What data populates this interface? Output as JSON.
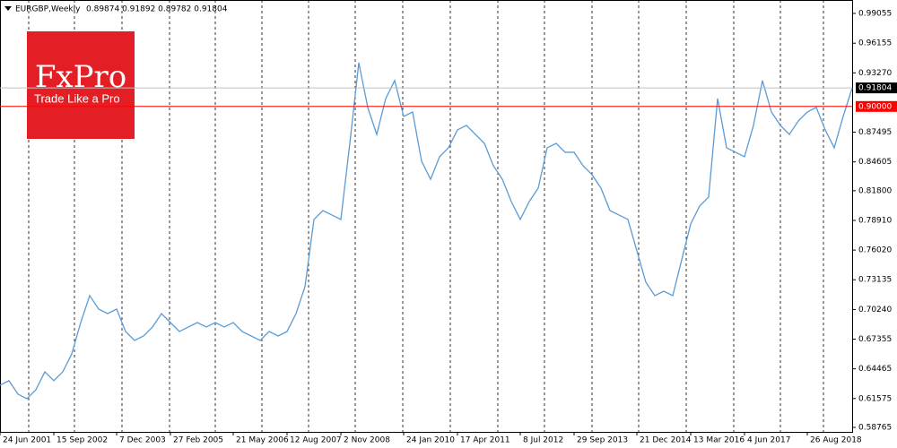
{
  "chart_data": {
    "type": "line",
    "title": "EURGBP,Weekly",
    "subtitle": "0.89874 0.91892 0.89782 0.91804",
    "brand": "FxPro",
    "slogan": "Trade Like a Pro",
    "color": "#5b9bd5",
    "categories": [
      "24 Jun 2001",
      null,
      null,
      null,
      null,
      null,
      "15 Sep 2002",
      null,
      null,
      null,
      null,
      null,
      null,
      "7 Dec 2003",
      null,
      null,
      null,
      null,
      null,
      "27 Feb 2005",
      null,
      null,
      null,
      null,
      null,
      null,
      "21 May 2006",
      null,
      null,
      null,
      null,
      null,
      "12 Aug 2007",
      null,
      null,
      null,
      null,
      null,
      "2 Nov 2008",
      null,
      null,
      null,
      null,
      null,
      null,
      "24 Jan 2010",
      null,
      null,
      null,
      null,
      null,
      "17 Apr 2011",
      null,
      null,
      null,
      null,
      null,
      null,
      "8 Jul 2012",
      null,
      null,
      null,
      null,
      null,
      "29 Sep 2013",
      null,
      null,
      null,
      null,
      null,
      null,
      "21 Dec 2014",
      null,
      null,
      null,
      null,
      null,
      "13 Mar 2016",
      null,
      null,
      null,
      null,
      null,
      "4 Jun 2017",
      null,
      null,
      null,
      null,
      null,
      null,
      "26 Aug 2018",
      null,
      null,
      null,
      null,
      null
    ],
    "values": [
      0.6287,
      0.6331,
      0.62,
      0.6156,
      0.6243,
      0.6418,
      0.6331,
      0.6418,
      0.6592,
      0.6897,
      0.7159,
      0.7028,
      0.6984,
      0.7028,
      0.681,
      0.6723,
      0.6766,
      0.6854,
      0.6984,
      0.6897,
      0.681,
      0.6854,
      0.6897,
      0.6854,
      0.6897,
      0.6854,
      0.6897,
      0.681,
      0.6766,
      0.6723,
      0.681,
      0.6766,
      0.681,
      0.6984,
      0.7246,
      0.79,
      0.7987,
      0.7944,
      0.79,
      0.8641,
      0.9426,
      0.899,
      0.8728,
      0.9077,
      0.9252,
      0.8903,
      0.8946,
      0.8467,
      0.8292,
      0.851,
      0.8598,
      0.8772,
      0.8816,
      0.8728,
      0.8641,
      0.8423,
      0.8292,
      0.8074,
      0.79,
      0.8074,
      0.8205,
      0.8598,
      0.8641,
      0.8554,
      0.8554,
      0.8423,
      0.8336,
      0.8205,
      0.7987,
      0.7944,
      0.79,
      0.7595,
      0.7289,
      0.7159,
      0.7202,
      0.7159,
      0.7508,
      0.7856,
      0.8031,
      0.8118,
      0.9077,
      0.8598,
      0.8554,
      0.851,
      0.8816,
      0.9252,
      0.8946,
      0.8816,
      0.8728,
      0.8859,
      0.8946,
      0.899,
      0.8772,
      0.8598,
      0.8903,
      0.91804
    ],
    "ylim": [
      0.5833,
      1.0036
    ],
    "yticks": [
      0.99055,
      0.96155,
      {
        "value": 0.9327,
        "label": "0.93270"
      },
      0.87495,
      0.84605,
      {
        "value": 0.818,
        "label": "0.81800"
      },
      {
        "value": 0.7891,
        "label": "0.78910"
      },
      {
        "value": 0.7602,
        "label": "0.76020"
      },
      0.73135,
      {
        "value": 0.7024,
        "label": "0.70240"
      },
      0.67355,
      0.64465,
      0.61575,
      0.58765
    ],
    "price_lines": [
      {
        "value": 0.91804,
        "label": "0.91804",
        "color": "#c0c0c0",
        "label_color": "#000000"
      },
      {
        "value": 0.9,
        "label": "0.90000",
        "color": "#ff0000",
        "label_color": "#ff0000"
      }
    ],
    "grid": true
  }
}
